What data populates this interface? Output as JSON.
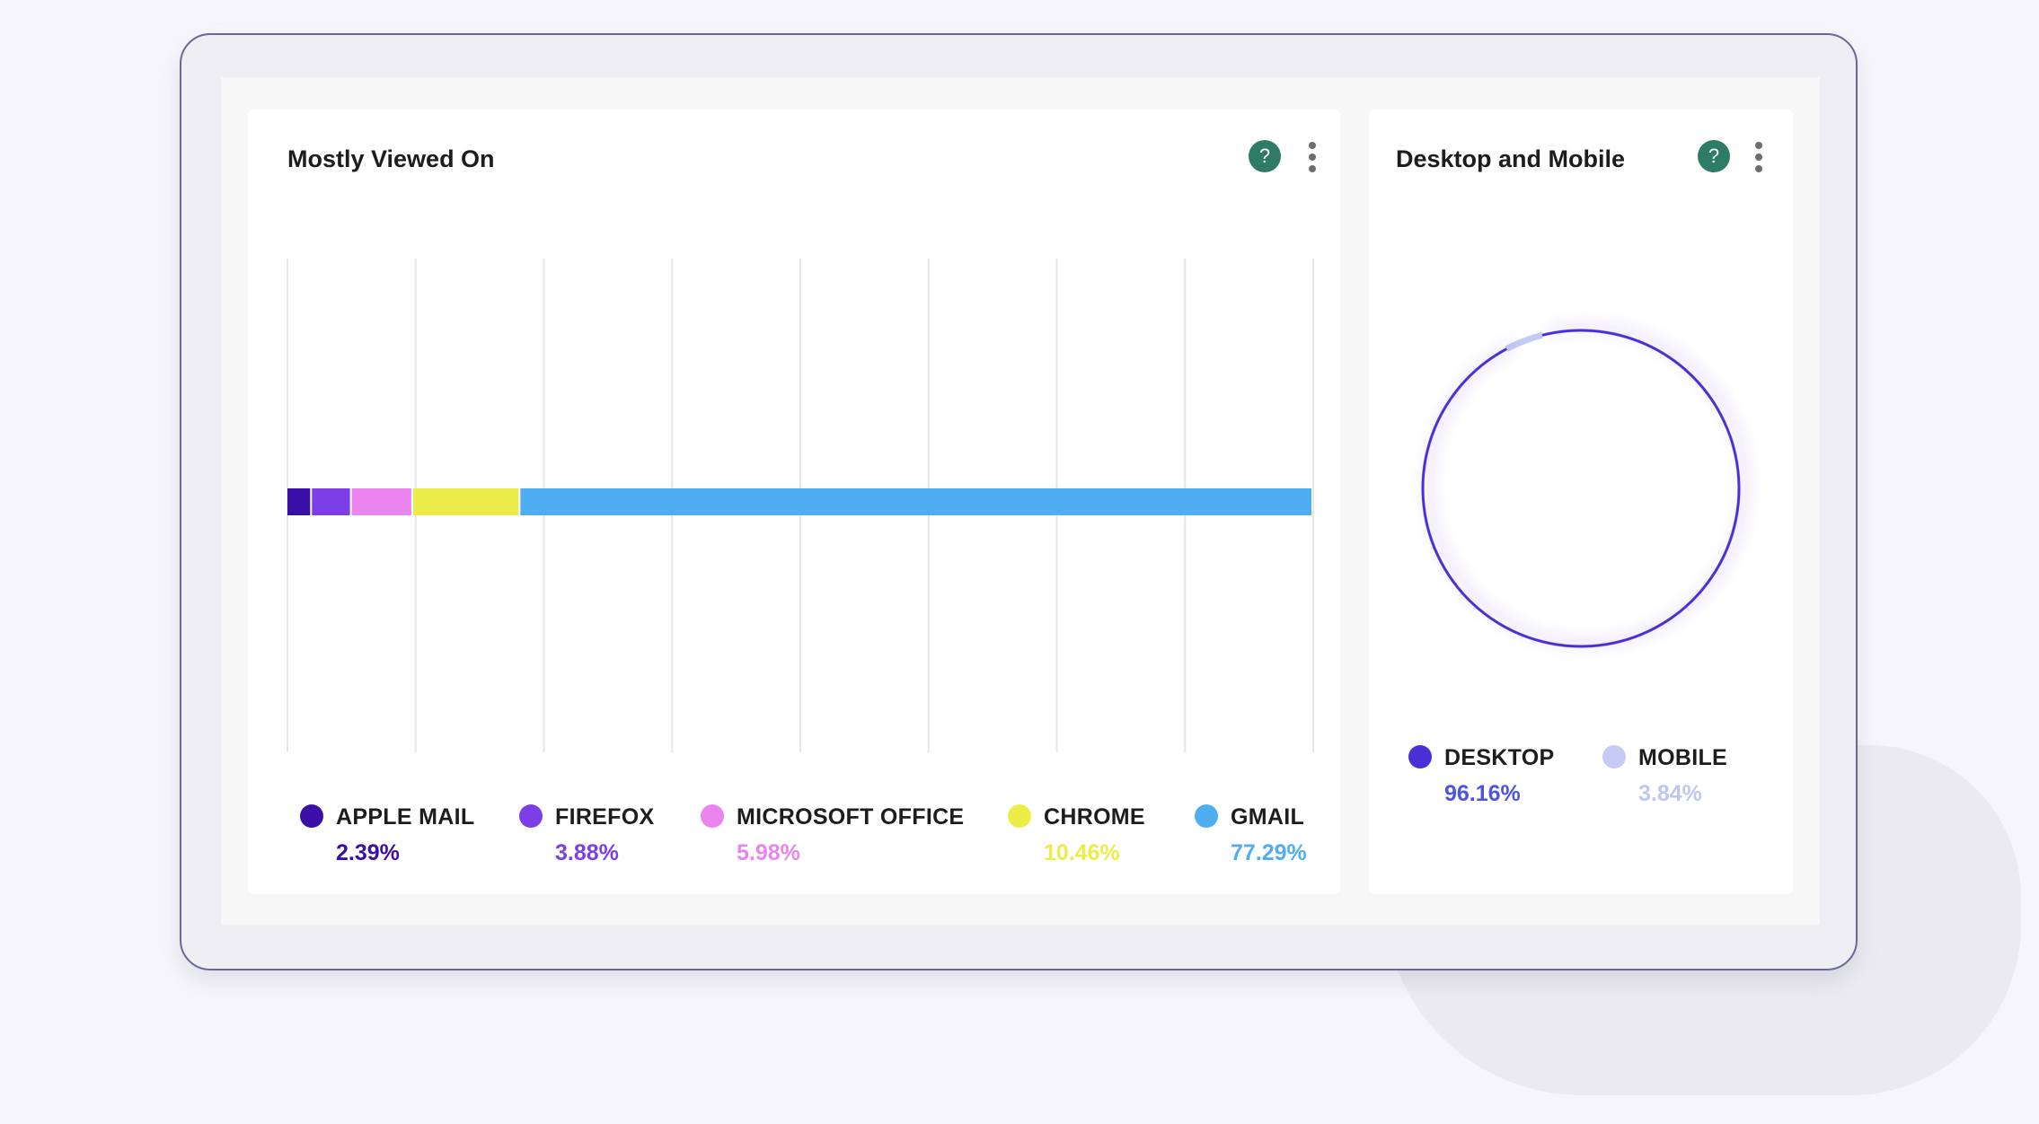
{
  "panels": {
    "left": {
      "title": "Mostly Viewed On"
    },
    "right": {
      "title": "Desktop and Mobile"
    }
  },
  "icons": {
    "help": "?"
  },
  "chart_data": [
    {
      "type": "bar",
      "orientation": "horizontal-stacked",
      "title": "Mostly Viewed On",
      "grid": true,
      "categories": [
        "APPLE MAIL",
        "FIREFOX",
        "MICROSOFT OFFICE",
        "CHROME",
        "GMAIL"
      ],
      "values": [
        2.39,
        3.88,
        5.98,
        10.46,
        77.29
      ],
      "value_labels": [
        "2.39%",
        "3.88%",
        "5.98%",
        "10.46%",
        "77.29%"
      ],
      "colors": [
        "#3a0fa8",
        "#7c3ee6",
        "#ea85ef",
        "#eded4a",
        "#4fadf2"
      ],
      "legend": "bottom"
    },
    {
      "type": "pie",
      "variant": "ring",
      "title": "Desktop and Mobile",
      "categories": [
        "DESKTOP",
        "MOBILE"
      ],
      "values": [
        96.16,
        3.84
      ],
      "value_labels": [
        "96.16%",
        "3.84%"
      ],
      "colors": [
        "#4a2fd6",
        "#c4cbf4"
      ],
      "value_text_colors": [
        "#4d55e0",
        "#c0c6f2"
      ],
      "legend": "bottom"
    }
  ]
}
